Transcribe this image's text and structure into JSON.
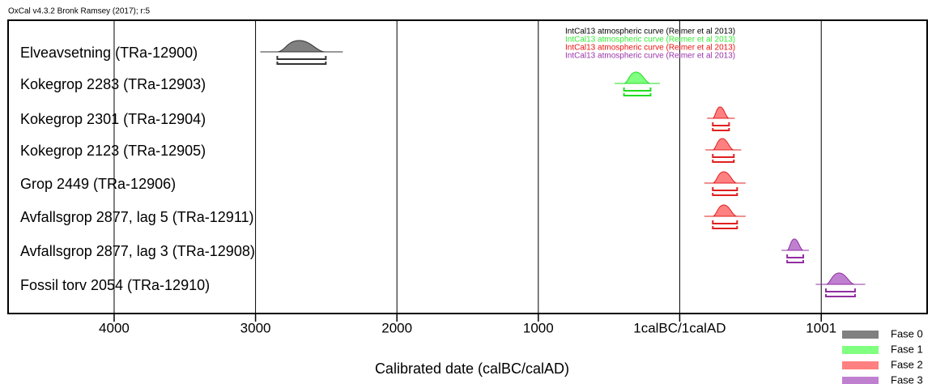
{
  "chart_data": {
    "type": "range",
    "title": "OxCal v4.3.2 Bronk Ramsey (2017); r:5",
    "xlabel": "Calibrated date (calBC/calAD)",
    "categories": [
      "Elveavsetning (TRa-12900)",
      "Kokegrop 2283 (TRa-12903)",
      "Kokegrop 2301 (TRa-12904)",
      "Kokegrop 2123 (TRa-12905)",
      "Grop 2449 (TRa-12906)",
      "Avfallsgrop 2877, lag 5 (TRa-12911)",
      "Avfallsgrop 2877, lag 3 (TRa-12908)",
      "Fossil torv 2054 (TRa-12910)"
    ],
    "low": [
      -2846,
      -394,
      234,
      234,
      234,
      234,
      760,
      1034
    ],
    "high": [
      -2503,
      -206,
      349,
      383,
      406,
      406,
      874,
      1240
    ],
    "phase": [
      0,
      1,
      2,
      2,
      2,
      2,
      3,
      3
    ],
    "legend": {
      "labels": [
        "Fase 0",
        "Fase 1",
        "Fase 2",
        "Fase 3"
      ],
      "colors": [
        "#808080",
        "#80ff80",
        "#ff8080",
        "#c080d0"
      ]
    },
    "line_colors": [
      "#333333",
      "#22dd22",
      "#e02020",
      "#9030a0"
    ],
    "annotations": [
      {
        "text": "IntCal13 atmospheric curve (Reimer et al 2013)",
        "color": "#000000"
      },
      {
        "text": "IntCal13 atmospheric curve (Reimer et al 2013)",
        "color": "#33ee33"
      },
      {
        "text": "IntCal13 atmospheric curve (Reimer et al 2013)",
        "color": "#ee1111"
      },
      {
        "text": "IntCal13 atmospheric curve (Reimer et al 2013)",
        "color": "#9933aa"
      }
    ],
    "xlim": [
      -4750,
      1750
    ],
    "xticks": [
      {
        "value": -4000,
        "label": "4000"
      },
      {
        "value": -3000,
        "label": "3000"
      },
      {
        "value": -2000,
        "label": "2000"
      },
      {
        "value": -1000,
        "label": "1000"
      },
      {
        "value": 0,
        "label": "1calBC/1calAD"
      },
      1001
    ],
    "grid": true
  }
}
